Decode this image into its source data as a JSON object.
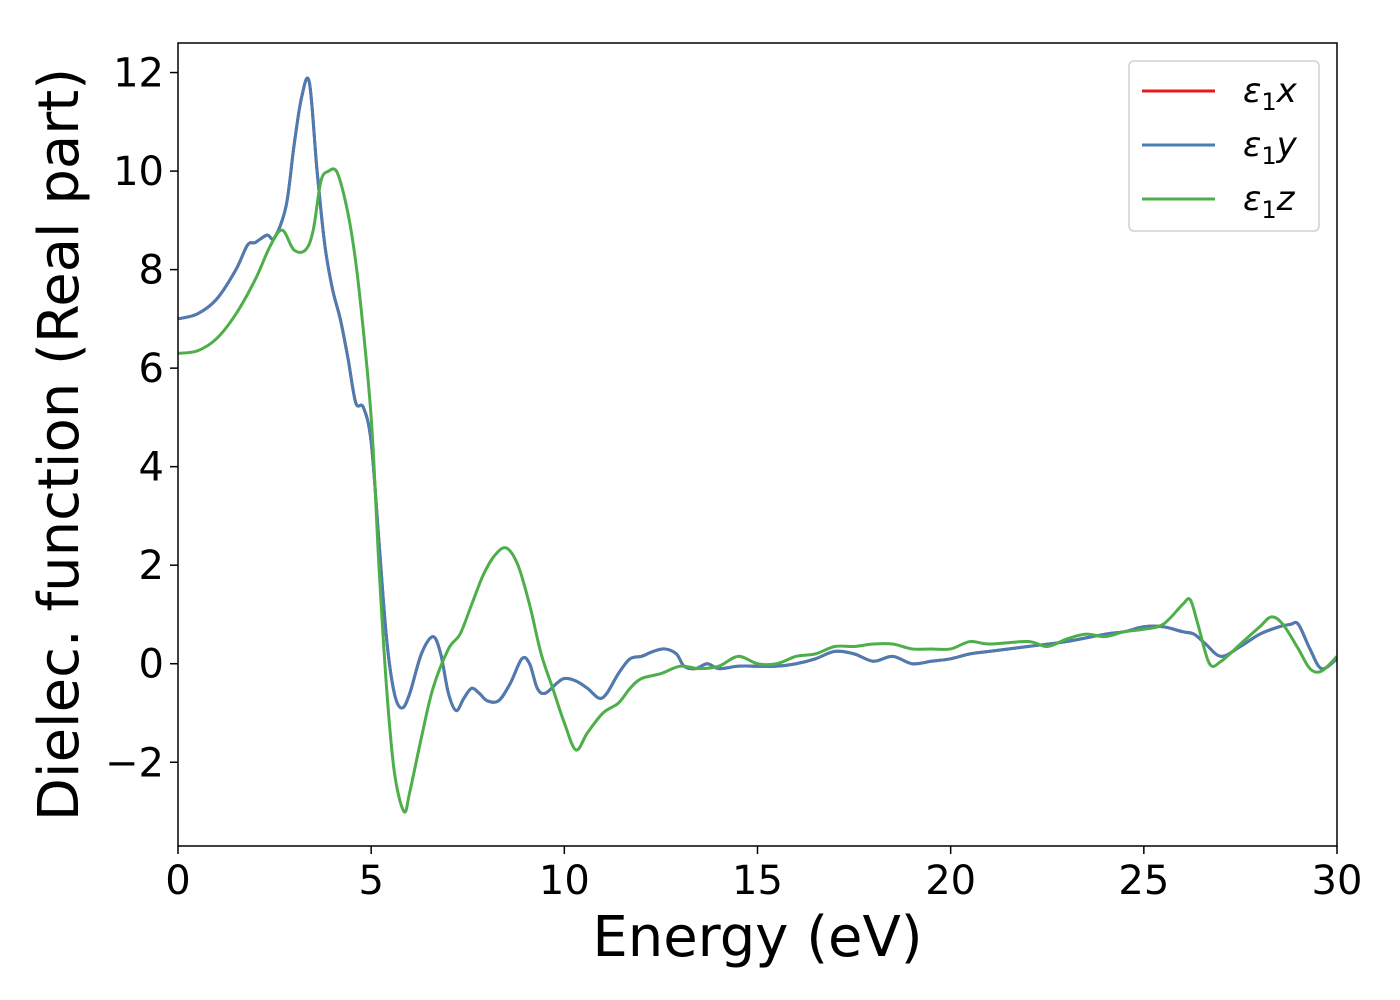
{
  "chart_data": {
    "type": "line",
    "xlabel": "Energy (eV)",
    "ylabel": "Dielec. function (Real part)",
    "xlim": [
      0,
      30
    ],
    "ylim": [
      -3.7,
      12.6
    ],
    "xticks": [
      0,
      5,
      10,
      15,
      20,
      25,
      30
    ],
    "xtick_labels": [
      "0",
      "5",
      "10",
      "15",
      "20",
      "25",
      "30"
    ],
    "yticks": [
      -2,
      0,
      2,
      4,
      6,
      8,
      10,
      12
    ],
    "ytick_labels": [
      "−2",
      "0",
      "2",
      "4",
      "6",
      "8",
      "10",
      "12"
    ],
    "grid": false,
    "legend_position": "top-right",
    "series": [
      {
        "name": "ε₁x",
        "legend_base": "ε",
        "legend_sub": "1",
        "legend_var": "x",
        "color": "#e41a1c",
        "x": [
          0,
          0.5,
          1,
          1.5,
          1.8,
          2,
          2.3,
          2.5,
          2.8,
          3.0,
          3.2,
          3.4,
          3.6,
          3.8,
          4.0,
          4.2,
          4.4,
          4.6,
          4.8,
          5.0,
          5.2,
          5.4,
          5.6,
          5.8,
          6.0,
          6.3,
          6.6,
          6.8,
          7.0,
          7.2,
          7.4,
          7.6,
          7.8,
          8.0,
          8.3,
          8.6,
          8.9,
          9.1,
          9.3,
          9.5,
          9.8,
          10.0,
          10.3,
          10.6,
          10.9,
          11.1,
          11.4,
          11.7,
          12.0,
          12.3,
          12.6,
          12.9,
          13.1,
          13.4,
          13.7,
          14.0,
          14.5,
          15.0,
          15.5,
          16.0,
          16.5,
          17.0,
          17.5,
          18.0,
          18.5,
          19.0,
          19.5,
          20.0,
          20.5,
          21.0,
          22.0,
          23.0,
          24.0,
          24.5,
          25.0,
          25.5,
          26.0,
          26.3,
          26.6,
          27.0,
          27.5,
          28.0,
          28.5,
          28.8,
          29.0,
          29.3,
          29.6,
          30.0
        ],
        "values": [
          7.0,
          7.1,
          7.4,
          8.0,
          8.5,
          8.55,
          8.7,
          8.65,
          9.3,
          10.5,
          11.5,
          11.8,
          10.0,
          8.5,
          7.6,
          7.0,
          6.2,
          5.3,
          5.2,
          4.5,
          2.5,
          0.5,
          -0.6,
          -0.9,
          -0.6,
          0.2,
          0.55,
          0.2,
          -0.6,
          -0.95,
          -0.7,
          -0.5,
          -0.6,
          -0.75,
          -0.75,
          -0.4,
          0.1,
          0.0,
          -0.5,
          -0.6,
          -0.4,
          -0.3,
          -0.35,
          -0.5,
          -0.7,
          -0.6,
          -0.2,
          0.1,
          0.15,
          0.25,
          0.3,
          0.2,
          -0.05,
          -0.1,
          0.0,
          -0.1,
          -0.05,
          -0.05,
          -0.05,
          0.0,
          0.1,
          0.25,
          0.2,
          0.05,
          0.15,
          0.0,
          0.05,
          0.1,
          0.2,
          0.25,
          0.35,
          0.45,
          0.6,
          0.65,
          0.75,
          0.75,
          0.65,
          0.6,
          0.4,
          0.15,
          0.35,
          0.6,
          0.75,
          0.8,
          0.8,
          0.3,
          -0.1,
          0.1
        ]
      },
      {
        "name": "ε₁y",
        "legend_base": "ε",
        "legend_sub": "1",
        "legend_var": "y",
        "color": "#4a7db3",
        "x": [
          0,
          0.5,
          1,
          1.5,
          1.8,
          2,
          2.3,
          2.5,
          2.8,
          3.0,
          3.2,
          3.4,
          3.6,
          3.8,
          4.0,
          4.2,
          4.4,
          4.6,
          4.8,
          5.0,
          5.2,
          5.4,
          5.6,
          5.8,
          6.0,
          6.3,
          6.6,
          6.8,
          7.0,
          7.2,
          7.4,
          7.6,
          7.8,
          8.0,
          8.3,
          8.6,
          8.9,
          9.1,
          9.3,
          9.5,
          9.8,
          10.0,
          10.3,
          10.6,
          10.9,
          11.1,
          11.4,
          11.7,
          12.0,
          12.3,
          12.6,
          12.9,
          13.1,
          13.4,
          13.7,
          14.0,
          14.5,
          15.0,
          15.5,
          16.0,
          16.5,
          17.0,
          17.5,
          18.0,
          18.5,
          19.0,
          19.5,
          20.0,
          20.5,
          21.0,
          22.0,
          23.0,
          24.0,
          24.5,
          25.0,
          25.5,
          26.0,
          26.3,
          26.6,
          27.0,
          27.5,
          28.0,
          28.5,
          28.8,
          29.0,
          29.3,
          29.6,
          30.0
        ],
        "values": [
          7.0,
          7.1,
          7.4,
          8.0,
          8.5,
          8.55,
          8.7,
          8.65,
          9.3,
          10.5,
          11.5,
          11.8,
          10.0,
          8.5,
          7.6,
          7.0,
          6.2,
          5.3,
          5.2,
          4.5,
          2.5,
          0.5,
          -0.6,
          -0.9,
          -0.6,
          0.2,
          0.55,
          0.2,
          -0.6,
          -0.95,
          -0.7,
          -0.5,
          -0.6,
          -0.75,
          -0.75,
          -0.4,
          0.1,
          0.0,
          -0.5,
          -0.6,
          -0.4,
          -0.3,
          -0.35,
          -0.5,
          -0.7,
          -0.6,
          -0.2,
          0.1,
          0.15,
          0.25,
          0.3,
          0.2,
          -0.05,
          -0.1,
          0.0,
          -0.1,
          -0.05,
          -0.05,
          -0.05,
          0.0,
          0.1,
          0.25,
          0.2,
          0.05,
          0.15,
          0.0,
          0.05,
          0.1,
          0.2,
          0.25,
          0.35,
          0.45,
          0.6,
          0.65,
          0.75,
          0.75,
          0.65,
          0.6,
          0.4,
          0.15,
          0.35,
          0.6,
          0.75,
          0.8,
          0.8,
          0.3,
          -0.1,
          0.1
        ]
      },
      {
        "name": "ε₁z",
        "legend_base": "ε",
        "legend_sub": "1",
        "legend_var": "z",
        "color": "#4daf4a",
        "x": [
          0,
          0.5,
          1,
          1.5,
          2.0,
          2.4,
          2.7,
          3.0,
          3.3,
          3.5,
          3.7,
          3.9,
          4.1,
          4.3,
          4.5,
          4.7,
          5.0,
          5.2,
          5.4,
          5.6,
          5.85,
          6.0,
          6.3,
          6.6,
          7.0,
          7.3,
          7.6,
          7.9,
          8.2,
          8.5,
          8.8,
          9.1,
          9.4,
          9.7,
          10.0,
          10.3,
          10.6,
          11.0,
          11.4,
          11.7,
          12.0,
          12.5,
          13.0,
          13.5,
          14.0,
          14.5,
          15.0,
          15.5,
          16.0,
          16.5,
          17.0,
          17.5,
          18.0,
          18.5,
          19.0,
          19.5,
          20.0,
          20.5,
          21.0,
          22.0,
          22.5,
          23.0,
          23.5,
          24.0,
          24.5,
          25.0,
          25.5,
          26.0,
          26.2,
          26.4,
          26.7,
          27.0,
          27.5,
          28.0,
          28.3,
          28.6,
          29.0,
          29.3,
          29.6,
          30.0
        ],
        "values": [
          6.3,
          6.35,
          6.6,
          7.1,
          7.8,
          8.5,
          8.8,
          8.4,
          8.4,
          8.8,
          9.8,
          10.0,
          10.0,
          9.5,
          8.7,
          7.5,
          5.0,
          2.0,
          -0.5,
          -2.2,
          -3.0,
          -2.6,
          -1.5,
          -0.5,
          0.3,
          0.6,
          1.2,
          1.8,
          2.2,
          2.35,
          2.0,
          1.2,
          0.2,
          -0.5,
          -1.2,
          -1.75,
          -1.4,
          -1.0,
          -0.8,
          -0.5,
          -0.3,
          -0.2,
          -0.05,
          -0.1,
          -0.05,
          0.15,
          0.0,
          0.0,
          0.15,
          0.2,
          0.35,
          0.35,
          0.4,
          0.4,
          0.3,
          0.3,
          0.3,
          0.45,
          0.4,
          0.45,
          0.35,
          0.5,
          0.6,
          0.55,
          0.65,
          0.7,
          0.8,
          1.2,
          1.3,
          0.8,
          0.0,
          0.05,
          0.4,
          0.75,
          0.95,
          0.8,
          0.3,
          -0.1,
          -0.15,
          0.15
        ]
      }
    ]
  }
}
